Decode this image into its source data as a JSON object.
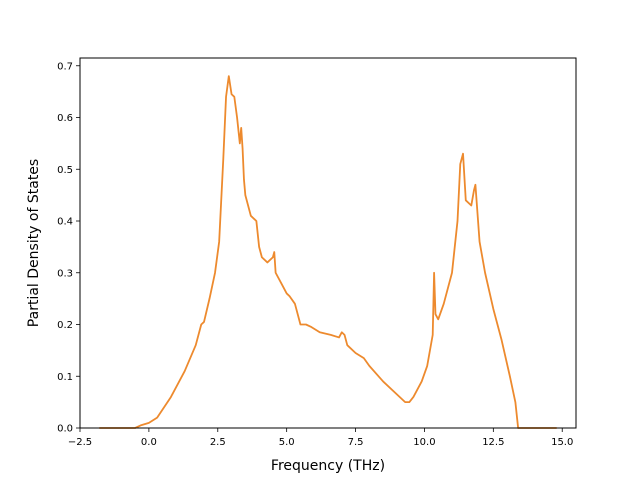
{
  "chart_data": {
    "type": "line",
    "title": "",
    "xlabel": "Frequency (THz)",
    "ylabel": "Partial Density of States",
    "xlim": [
      -2.5,
      15.5
    ],
    "ylim": [
      0.0,
      0.715
    ],
    "x_ticks": [
      -2.5,
      0.0,
      2.5,
      5.0,
      7.5,
      10.0,
      12.5,
      15.0
    ],
    "x_tick_labels": [
      "−2.5",
      "0.0",
      "2.5",
      "5.0",
      "7.5",
      "10.0",
      "12.5",
      "15.0"
    ],
    "y_ticks": [
      0.0,
      0.1,
      0.2,
      0.3,
      0.4,
      0.5,
      0.6,
      0.7
    ],
    "y_tick_labels": [
      "0.0",
      "0.1",
      "0.2",
      "0.3",
      "0.4",
      "0.5",
      "0.6",
      "0.7"
    ],
    "grid": false,
    "series": [
      {
        "color": "#ed8a2e",
        "x": [
          -1.8,
          -0.5,
          -0.3,
          0.0,
          0.3,
          0.8,
          1.3,
          1.7,
          1.9,
          2.0,
          2.2,
          2.4,
          2.55,
          2.7,
          2.8,
          2.9,
          3.0,
          3.1,
          3.2,
          3.3,
          3.35,
          3.4,
          3.45,
          3.5,
          3.7,
          3.9,
          4.0,
          4.1,
          4.3,
          4.5,
          4.55,
          4.6,
          4.8,
          5.0,
          5.1,
          5.3,
          5.5,
          5.7,
          5.9,
          6.2,
          6.6,
          6.9,
          7.0,
          7.1,
          7.2,
          7.5,
          7.8,
          8.0,
          8.5,
          9.0,
          9.3,
          9.45,
          9.6,
          9.9,
          10.1,
          10.3,
          10.35,
          10.4,
          10.5,
          10.7,
          11.0,
          11.2,
          11.3,
          11.4,
          11.5,
          11.7,
          11.8,
          11.85,
          12.0,
          12.2,
          12.5,
          12.8,
          13.1,
          13.3,
          13.4,
          13.5,
          14.8
        ],
        "y": [
          0.0,
          0.0,
          0.005,
          0.01,
          0.02,
          0.06,
          0.11,
          0.16,
          0.2,
          0.205,
          0.25,
          0.3,
          0.36,
          0.52,
          0.64,
          0.68,
          0.645,
          0.64,
          0.6,
          0.55,
          0.58,
          0.54,
          0.48,
          0.45,
          0.41,
          0.4,
          0.35,
          0.33,
          0.32,
          0.33,
          0.34,
          0.3,
          0.28,
          0.26,
          0.255,
          0.24,
          0.2,
          0.2,
          0.195,
          0.185,
          0.18,
          0.175,
          0.185,
          0.18,
          0.16,
          0.145,
          0.135,
          0.12,
          0.09,
          0.065,
          0.05,
          0.05,
          0.06,
          0.09,
          0.12,
          0.18,
          0.3,
          0.22,
          0.21,
          0.24,
          0.3,
          0.4,
          0.51,
          0.53,
          0.44,
          0.43,
          0.46,
          0.47,
          0.36,
          0.3,
          0.23,
          0.17,
          0.1,
          0.05,
          0.0,
          0.0,
          0.0
        ]
      }
    ]
  }
}
